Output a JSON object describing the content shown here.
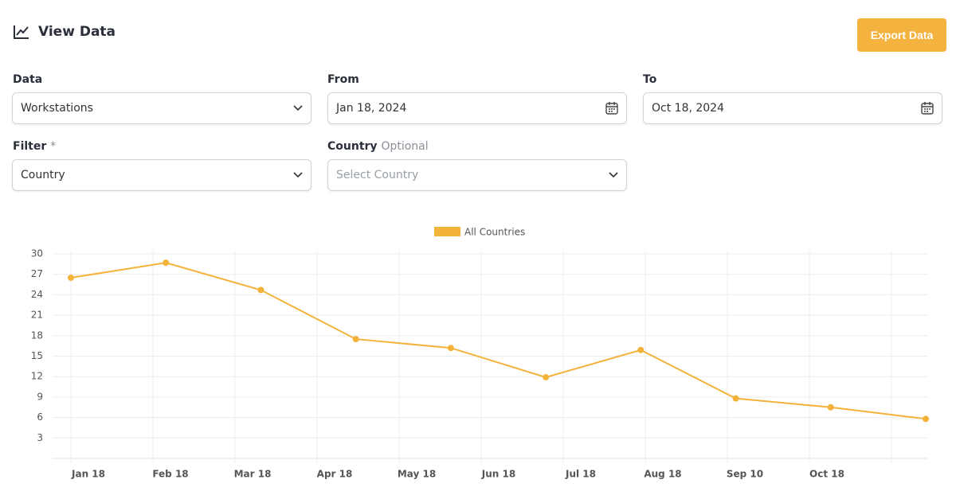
{
  "header": {
    "title": "View Data",
    "export_button": "Export Data"
  },
  "form": {
    "fields": [
      {
        "label": "Data",
        "value": "Workstations"
      },
      {
        "label": "From",
        "value": "Jan 18, 2024"
      },
      {
        "label": "To",
        "value": "Oct 18, 2024"
      },
      {
        "label": "Filter",
        "required_mark": "*",
        "value": "Country"
      },
      {
        "label": "Country",
        "hint": "Optional",
        "placeholder": "Select Country"
      }
    ]
  },
  "chart_data": {
    "type": "line",
    "x_labels": [
      "Jan 18",
      "Feb 18",
      "Mar 18",
      "Apr 18",
      "May 18",
      "Jun 18",
      "Jul 18",
      "Aug 18",
      "Sep 10",
      "Oct 18"
    ],
    "series": [
      {
        "name": "All Countries",
        "color": "#f3b23a",
        "values": [
          26.5,
          28.7,
          24.7,
          17.5,
          16.2,
          11.9,
          15.9,
          8.8,
          7.5,
          5.8
        ]
      }
    ],
    "ylim": [
      0,
      30
    ],
    "yticks": [
      3,
      6,
      9,
      12,
      15,
      18,
      21,
      24,
      27,
      30
    ],
    "grid": true
  }
}
